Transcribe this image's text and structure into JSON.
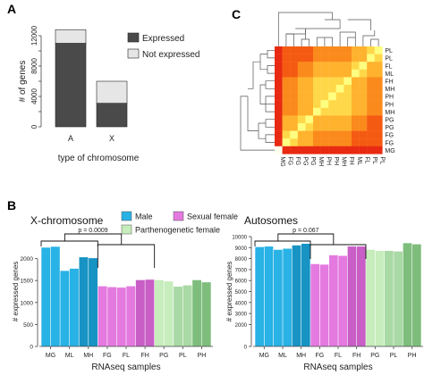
{
  "panels": {
    "a": "A",
    "b": "B",
    "c": "C"
  },
  "chart_data": [
    {
      "type": "bar",
      "stacked": true,
      "categories": [
        "A",
        "X"
      ],
      "series": [
        {
          "name": "Expressed",
          "values": [
            11000,
            3100
          ],
          "color": "#4a4a4a"
        },
        {
          "name": "Not expressed",
          "values": [
            1800,
            2900
          ],
          "color": "#e6e6e6"
        }
      ],
      "xlabel": "type of chromosome",
      "ylabel": "# of genes",
      "ylim": [
        0,
        12000
      ],
      "yticks": [
        0,
        4000,
        8000,
        12000
      ],
      "yticks_minor": [
        2000,
        6000,
        10000
      ],
      "legend": "top-right"
    },
    {
      "type": "heatmap",
      "rows": [
        "PL",
        "PL",
        "FL",
        "ML",
        "FH",
        "MH",
        "PH",
        "PH",
        "MH",
        "PG",
        "PG",
        "FG",
        "FG",
        "MG"
      ],
      "cols": [
        "MG",
        "FG",
        "FG",
        "PG",
        "PG",
        "MH",
        "PH",
        "PH",
        "MH",
        "FH",
        "ML",
        "FL",
        "PL",
        "PL"
      ],
      "dendrograms": [
        "top",
        "left"
      ],
      "colors": [
        "#e82a12",
        "#f55a12",
        "#fb8a1c",
        "#ffb22e",
        "#ffd84a",
        "#ffff80",
        "#fffff0"
      ]
    },
    {
      "type": "bar",
      "title": "X-chromosome",
      "categories": [
        "MG",
        "",
        "ML",
        "",
        "MH",
        "",
        "FG",
        "",
        "FL",
        "",
        "FH",
        "",
        "PG",
        "",
        "PL",
        "",
        "PH",
        ""
      ],
      "values": [
        2250,
        2270,
        1720,
        1770,
        2030,
        2010,
        1370,
        1350,
        1340,
        1370,
        1510,
        1520,
        1510,
        1480,
        1360,
        1390,
        1510,
        1460
      ],
      "ylabel": "# expressed genes",
      "xlabel": "RNAseq samples",
      "ylim": [
        0,
        2500
      ],
      "yticks": [
        0,
        500,
        1000,
        1500,
        2000
      ],
      "annotation": "p = 0.0009",
      "legend": [
        "Male",
        "Sexual female",
        "Parthenogenetic female"
      ]
    },
    {
      "type": "bar",
      "title": "Autosomes",
      "categories": [
        "MG",
        "",
        "ML",
        "",
        "MH",
        "",
        "FG",
        "",
        "FL",
        "",
        "FH",
        "",
        "PG",
        "",
        "PL",
        "",
        "PH",
        ""
      ],
      "values": [
        9050,
        9100,
        8800,
        8900,
        9200,
        9350,
        7500,
        7450,
        8300,
        8250,
        9100,
        9100,
        8800,
        8700,
        8700,
        8650,
        9400,
        9300
      ],
      "ylabel": "# expressed genes",
      "xlabel": "RNAseq samples",
      "ylim": [
        0,
        10000
      ],
      "yticks": [
        0,
        2000,
        3000,
        4000,
        5000,
        6000,
        7000,
        8000,
        9000,
        10000
      ],
      "annotation": "p = 0.067"
    }
  ],
  "colors": {
    "male": [
      "#29b2e5",
      "#1793c4"
    ],
    "sexual_female": [
      "#e47ae0",
      "#c85ec6"
    ],
    "parth_female": [
      "#c6edbb",
      "#a9d9a4",
      "#7ebd7c"
    ]
  }
}
